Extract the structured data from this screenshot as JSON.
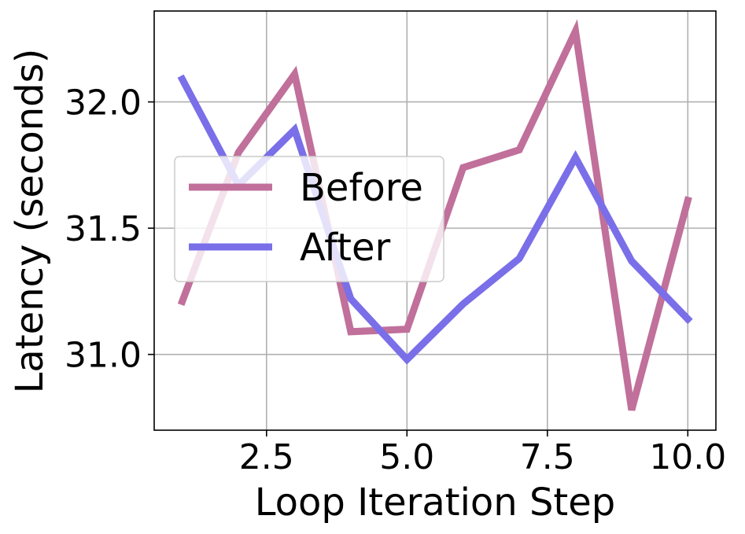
{
  "chart_data": {
    "type": "line",
    "title": "",
    "xlabel": "Loop Iteration Step",
    "ylabel": "Latency (seconds)",
    "x": [
      1,
      2,
      3,
      4,
      5,
      6,
      7,
      8,
      9,
      10
    ],
    "xlim": [
      0.5,
      10.5
    ],
    "ylim": [
      30.7,
      32.36
    ],
    "xticks": [
      2.5,
      5.0,
      7.5,
      10.0
    ],
    "xtick_labels": [
      "2.5",
      "5.0",
      "7.5",
      "10.0"
    ],
    "yticks": [
      31.0,
      31.5,
      32.0
    ],
    "ytick_labels": [
      "31.0",
      "31.5",
      "32.0"
    ],
    "grid": true,
    "legend_position": "center-left",
    "series": [
      {
        "name": "Before",
        "color": "#c0709a",
        "values": [
          31.21,
          31.8,
          32.11,
          31.09,
          31.1,
          31.74,
          31.81,
          32.28,
          30.78,
          31.61
        ]
      },
      {
        "name": "After",
        "color": "#7a6fe8",
        "values": [
          32.09,
          31.67,
          31.89,
          31.22,
          30.98,
          31.2,
          31.38,
          31.78,
          31.37,
          31.14
        ]
      }
    ]
  }
}
